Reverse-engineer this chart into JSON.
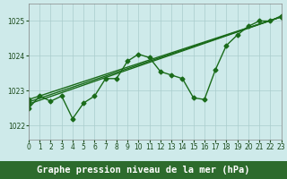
{
  "title": "Graphe pression niveau de la mer (hPa)",
  "background_color": "#ceeaea",
  "plot_bg_color": "#ceeaea",
  "grid_color": "#aacccc",
  "line_color": "#1a6b1a",
  "axis_bar_color": "#2d6b2d",
  "axis_text_color": "#ffffff",
  "xlim": [
    0,
    23
  ],
  "ylim": [
    1021.6,
    1025.5
  ],
  "yticks": [
    1022,
    1023,
    1024,
    1025
  ],
  "xticks": [
    0,
    1,
    2,
    3,
    4,
    5,
    6,
    7,
    8,
    9,
    10,
    11,
    12,
    13,
    14,
    15,
    16,
    17,
    18,
    19,
    20,
    21,
    22,
    23
  ],
  "data_series": [
    1022.5,
    1022.85,
    1022.7,
    1022.85,
    1022.2,
    1022.65,
    1022.85,
    1023.35,
    1023.35,
    1023.85,
    1024.05,
    1023.95,
    1023.55,
    1023.45,
    1023.35,
    1022.8,
    1022.75,
    1023.6,
    1024.3,
    1024.6,
    1024.85,
    1025.0,
    1025.0,
    1025.15
  ],
  "linear1": [
    1022.62,
    1025.12
  ],
  "linear2": [
    1022.68,
    1025.12
  ],
  "linear3": [
    1022.75,
    1025.12
  ],
  "marker": "D",
  "markersize": 2.5,
  "linewidth": 1.0,
  "title_fontsize": 7.5,
  "tick_fontsize": 5.5
}
